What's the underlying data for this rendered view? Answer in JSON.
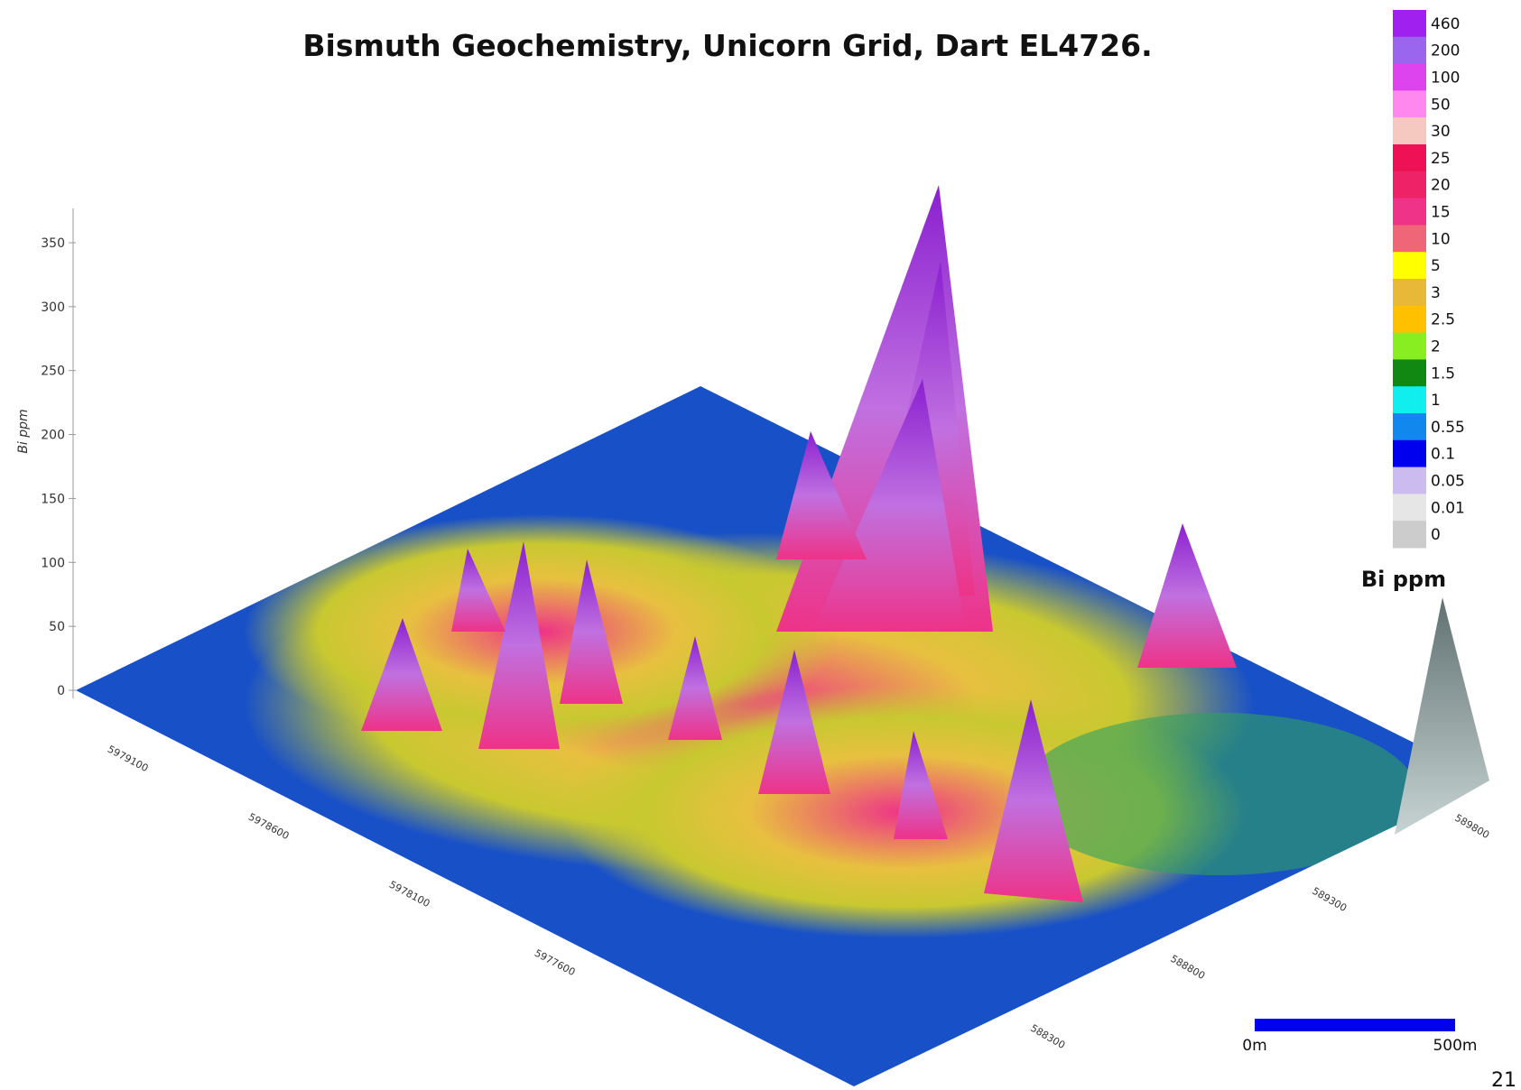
{
  "figure": {
    "title": "Bismuth Geochemistry, Unicorn Grid, Dart EL4726.",
    "z_axis": {
      "label": "Bi ppm",
      "ticks": [
        0,
        50,
        100,
        150,
        200,
        250,
        300,
        350
      ]
    },
    "northing_labels": [
      "5979100",
      "5978600",
      "5978100",
      "5977600"
    ],
    "easting_labels": [
      "588300",
      "588800",
      "589300",
      "589800"
    ],
    "legend": {
      "title": "Bi ppm",
      "entries": [
        {
          "label": "460",
          "color": "#a020f0"
        },
        {
          "label": "200",
          "color": "#9a66ee"
        },
        {
          "label": "100",
          "color": "#dd44ee"
        },
        {
          "label": "50",
          "color": "#ff88ee"
        },
        {
          "label": "30",
          "color": "#f5c8c0"
        },
        {
          "label": "25",
          "color": "#ee1155"
        },
        {
          "label": "20",
          "color": "#ee2266"
        },
        {
          "label": "15",
          "color": "#ee3388"
        },
        {
          "label": "10",
          "color": "#ee6677"
        },
        {
          "label": "5",
          "color": "#ffff00"
        },
        {
          "label": "3",
          "color": "#e8b838"
        },
        {
          "label": "2.5",
          "color": "#ffc000"
        },
        {
          "label": "2",
          "color": "#88ee22"
        },
        {
          "label": "1.5",
          "color": "#118811"
        },
        {
          "label": "1",
          "color": "#11eeee"
        },
        {
          "label": "0.55",
          "color": "#1188ee"
        },
        {
          "label": "0.1",
          "color": "#0000ee"
        },
        {
          "label": "0.05",
          "color": "#ccbbee"
        },
        {
          "label": "0.01",
          "color": "#e6e6e6"
        },
        {
          "label": "0",
          "color": "#cccccc"
        }
      ]
    },
    "scale_bar": {
      "start": "0m",
      "end": "500m"
    },
    "page_number": "21"
  }
}
